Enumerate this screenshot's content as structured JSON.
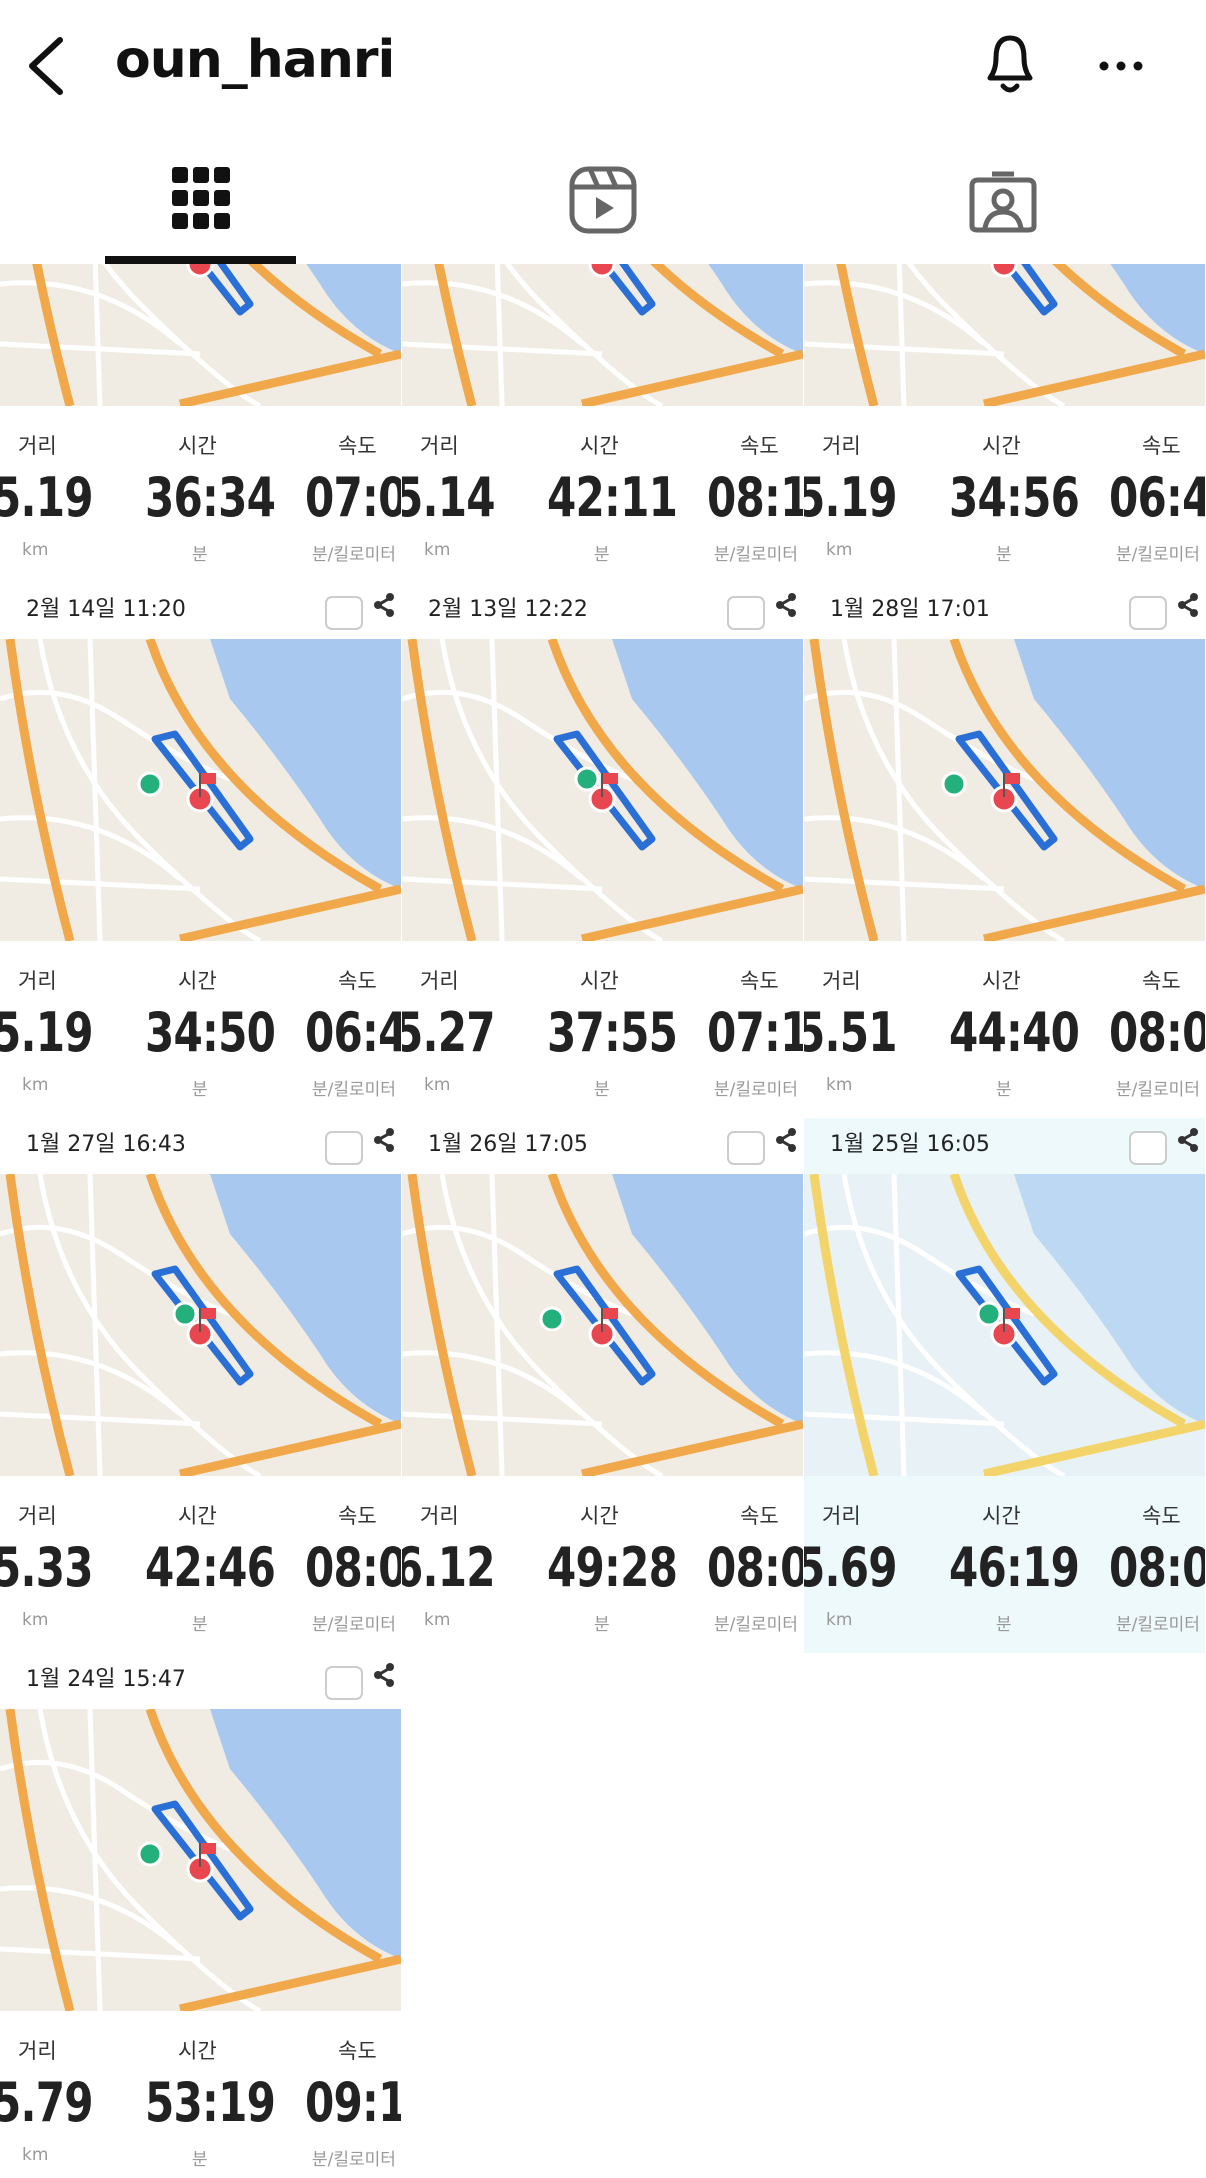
{
  "header": {
    "username": "oun_hanri"
  },
  "tiles": [
    {
      "distance_label": "거리",
      "distance": "5.19",
      "distance_unit": "km",
      "time_label": "시간",
      "time": "36:34",
      "time_unit": "분",
      "speed_label": "속도",
      "speed": "07:0",
      "speed_unit": "분/킬로미터"
    },
    {
      "distance_label": "거리",
      "distance": "5.14",
      "distance_unit": "km",
      "time_label": "시간",
      "time": "42:11",
      "time_unit": "분",
      "speed_label": "속도",
      "speed": "08:1",
      "speed_unit": "분/킬로미터"
    },
    {
      "distance_label": "거리",
      "distance": "5.19",
      "distance_unit": "km",
      "time_label": "시간",
      "time": "34:56",
      "time_unit": "분",
      "speed_label": "속도",
      "speed": "06:4",
      "speed_unit": "분/킬로미터"
    },
    {
      "date": "2월 14일 11:20",
      "distance_label": "거리",
      "distance": "5.19",
      "distance_unit": "km",
      "time_label": "시간",
      "time": "34:50",
      "time_unit": "분",
      "speed_label": "속도",
      "speed": "06:4",
      "speed_unit": "분/킬로미터"
    },
    {
      "date": "2월 13일 12:22",
      "distance_label": "거리",
      "distance": "5.27",
      "distance_unit": "km",
      "time_label": "시간",
      "time": "37:55",
      "time_unit": "분",
      "speed_label": "속도",
      "speed": "07:1",
      "speed_unit": "분/킬로미터"
    },
    {
      "date": "1월 28일 17:01",
      "distance_label": "거리",
      "distance": "5.51",
      "distance_unit": "km",
      "time_label": "시간",
      "time": "44:40",
      "time_unit": "분",
      "speed_label": "속도",
      "speed": "08:0",
      "speed_unit": "분/킬로미터"
    },
    {
      "date": "1월 27일 16:43",
      "distance_label": "거리",
      "distance": "5.33",
      "distance_unit": "km",
      "time_label": "시간",
      "time": "42:46",
      "time_unit": "분",
      "speed_label": "속도",
      "speed": "08:0",
      "speed_unit": "분/킬로미터"
    },
    {
      "date": "1월 26일 17:05",
      "distance_label": "거리",
      "distance": "6.12",
      "distance_unit": "km",
      "time_label": "시간",
      "time": "49:28",
      "time_unit": "분",
      "speed_label": "속도",
      "speed": "08:0",
      "speed_unit": "분/킬로미터"
    },
    {
      "date": "1월 25일 16:05",
      "distance_label": "거리",
      "distance": "5.69",
      "distance_unit": "km",
      "time_label": "시간",
      "time": "46:19",
      "time_unit": "분",
      "speed_label": "속도",
      "speed": "08:0",
      "speed_unit": "분/킬로미터"
    },
    {
      "date": "1월 24일 15:47",
      "distance_label": "거리",
      "distance": "5.79",
      "distance_unit": "km",
      "time_label": "시간",
      "time": "53:19",
      "time_unit": "분",
      "speed_label": "속도",
      "speed": "09:1",
      "speed_unit": "분/킬로미터"
    }
  ]
}
